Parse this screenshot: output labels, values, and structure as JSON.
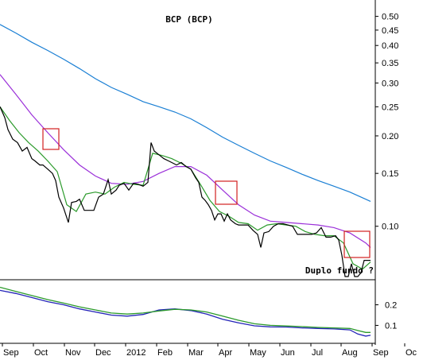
{
  "chart_data": [
    {
      "type": "line",
      "title": "BCP (BCP)",
      "annotation": "Duplo fundo ?",
      "yscale": "log",
      "ylim": [
        0.068,
        0.56
      ],
      "y_ticks": [
        0.5,
        0.45,
        0.4,
        0.35,
        0.3,
        0.25,
        0.2,
        0.15,
        0.1
      ],
      "y_tick_labels": [
        "0.50",
        "0.45",
        "0.40",
        "0.35",
        "0.30",
        "0.25",
        "0.20",
        "0.15",
        "0.10"
      ],
      "x_months": [
        "Sep",
        "Oct",
        "Nov",
        "Dec",
        "2012",
        "Feb",
        "Mar",
        "Apr",
        "May",
        "Jun",
        "Jul",
        "Aug",
        "Sep",
        "Oc"
      ],
      "grid": false,
      "highlight_boxes": 4,
      "series": [
        {
          "color": "#1a7fd4",
          "x": [
            0,
            20,
            40,
            60,
            80,
            100,
            120,
            140,
            160,
            180,
            200,
            220,
            240,
            260,
            280,
            300,
            320,
            340,
            360,
            380,
            400,
            420,
            440,
            460,
            466
          ],
          "values": [
            0.47,
            0.44,
            0.41,
            0.385,
            0.36,
            0.335,
            0.31,
            0.29,
            0.275,
            0.26,
            0.25,
            0.24,
            0.228,
            0.213,
            0.198,
            0.186,
            0.175,
            0.165,
            0.157,
            0.149,
            0.142,
            0.136,
            0.13,
            0.123,
            0.121
          ]
        },
        {
          "color": "#9b30d9",
          "x": [
            0,
            20,
            40,
            60,
            80,
            100,
            120,
            140,
            160,
            180,
            200,
            220,
            240,
            260,
            280,
            300,
            320,
            340,
            360,
            380,
            400,
            420,
            440,
            460,
            466
          ],
          "values": [
            0.32,
            0.275,
            0.235,
            0.205,
            0.18,
            0.16,
            0.147,
            0.139,
            0.138,
            0.141,
            0.15,
            0.158,
            0.158,
            0.148,
            0.132,
            0.118,
            0.109,
            0.104,
            0.103,
            0.102,
            0.101,
            0.099,
            0.095,
            0.088,
            0.085
          ]
        },
        {
          "color": "#2b9a2b",
          "x": [
            0,
            12,
            24,
            36,
            48,
            60,
            72,
            84,
            96,
            108,
            120,
            132,
            144,
            156,
            168,
            180,
            192,
            204,
            216,
            228,
            240,
            252,
            264,
            276,
            288,
            300,
            312,
            324,
            336,
            348,
            360,
            372,
            384,
            396,
            408,
            420,
            432,
            444,
            456,
            466
          ],
          "values": [
            0.25,
            0.225,
            0.205,
            0.19,
            0.178,
            0.165,
            0.152,
            0.118,
            0.112,
            0.128,
            0.13,
            0.128,
            0.135,
            0.14,
            0.138,
            0.137,
            0.175,
            0.172,
            0.168,
            0.162,
            0.155,
            0.138,
            0.122,
            0.112,
            0.108,
            0.103,
            0.102,
            0.097,
            0.101,
            0.102,
            0.101,
            0.1,
            0.096,
            0.094,
            0.093,
            0.093,
            0.088,
            0.075,
            0.072,
            0.076
          ]
        },
        {
          "color": "#000000",
          "x": [
            0,
            6,
            10,
            16,
            22,
            28,
            34,
            40,
            44,
            50,
            54,
            60,
            66,
            70,
            74,
            80,
            86,
            90,
            96,
            100,
            106,
            112,
            118,
            124,
            130,
            136,
            140,
            146,
            150,
            156,
            162,
            168,
            174,
            180,
            186,
            190,
            194,
            200,
            206,
            212,
            218,
            222,
            228,
            234,
            240,
            246,
            250,
            254,
            258,
            262,
            266,
            270,
            274,
            278,
            282,
            286,
            290,
            296,
            300,
            306,
            312,
            318,
            324,
            328,
            332,
            338,
            344,
            350,
            356,
            362,
            368,
            374,
            380,
            386,
            392,
            398,
            404,
            410,
            416,
            422,
            426,
            430,
            434,
            438,
            442,
            446,
            450,
            454,
            458,
            462,
            466
          ],
          "values": [
            0.25,
            0.23,
            0.21,
            0.195,
            0.19,
            0.178,
            0.183,
            0.168,
            0.165,
            0.16,
            0.16,
            0.155,
            0.15,
            0.142,
            0.125,
            0.115,
            0.103,
            0.12,
            0.121,
            0.123,
            0.113,
            0.113,
            0.113,
            0.125,
            0.128,
            0.143,
            0.128,
            0.132,
            0.137,
            0.139,
            0.132,
            0.139,
            0.138,
            0.136,
            0.14,
            0.19,
            0.178,
            0.173,
            0.168,
            0.165,
            0.162,
            0.16,
            0.163,
            0.158,
            0.155,
            0.145,
            0.14,
            0.125,
            0.122,
            0.118,
            0.113,
            0.105,
            0.11,
            0.11,
            0.104,
            0.11,
            0.105,
            0.102,
            0.101,
            0.101,
            0.101,
            0.097,
            0.094,
            0.085,
            0.095,
            0.096,
            0.1,
            0.102,
            0.102,
            0.101,
            0.1,
            0.094,
            0.094,
            0.094,
            0.094,
            0.095,
            0.099,
            0.092,
            0.092,
            0.093,
            0.09,
            0.08,
            0.068,
            0.068,
            0.075,
            0.068,
            0.068,
            0.07,
            0.077,
            0.077,
            0.077
          ]
        }
      ]
    },
    {
      "type": "line",
      "ylim": [
        0.04,
        0.31
      ],
      "y_ticks": [
        0.2,
        0.1
      ],
      "y_tick_labels": [
        "0.2",
        "0.1"
      ],
      "series": [
        {
          "color": "#2323b8",
          "x": [
            0,
            20,
            40,
            60,
            80,
            100,
            120,
            140,
            160,
            180,
            200,
            220,
            240,
            260,
            280,
            300,
            320,
            340,
            360,
            380,
            400,
            420,
            440,
            450,
            460,
            466
          ],
          "values": [
            0.27,
            0.255,
            0.235,
            0.215,
            0.2,
            0.18,
            0.165,
            0.15,
            0.145,
            0.153,
            0.175,
            0.18,
            0.172,
            0.155,
            0.13,
            0.112,
            0.098,
            0.093,
            0.092,
            0.088,
            0.085,
            0.083,
            0.078,
            0.058,
            0.048,
            0.052
          ]
        },
        {
          "color": "#2b9a2b",
          "x": [
            0,
            20,
            40,
            60,
            80,
            100,
            120,
            140,
            160,
            180,
            200,
            220,
            240,
            260,
            280,
            300,
            320,
            340,
            360,
            380,
            400,
            420,
            440,
            450,
            460,
            466
          ],
          "values": [
            0.285,
            0.265,
            0.245,
            0.225,
            0.208,
            0.19,
            0.175,
            0.16,
            0.155,
            0.16,
            0.17,
            0.178,
            0.175,
            0.165,
            0.145,
            0.125,
            0.108,
            0.1,
            0.097,
            0.094,
            0.09,
            0.088,
            0.085,
            0.075,
            0.066,
            0.066
          ]
        }
      ]
    }
  ]
}
